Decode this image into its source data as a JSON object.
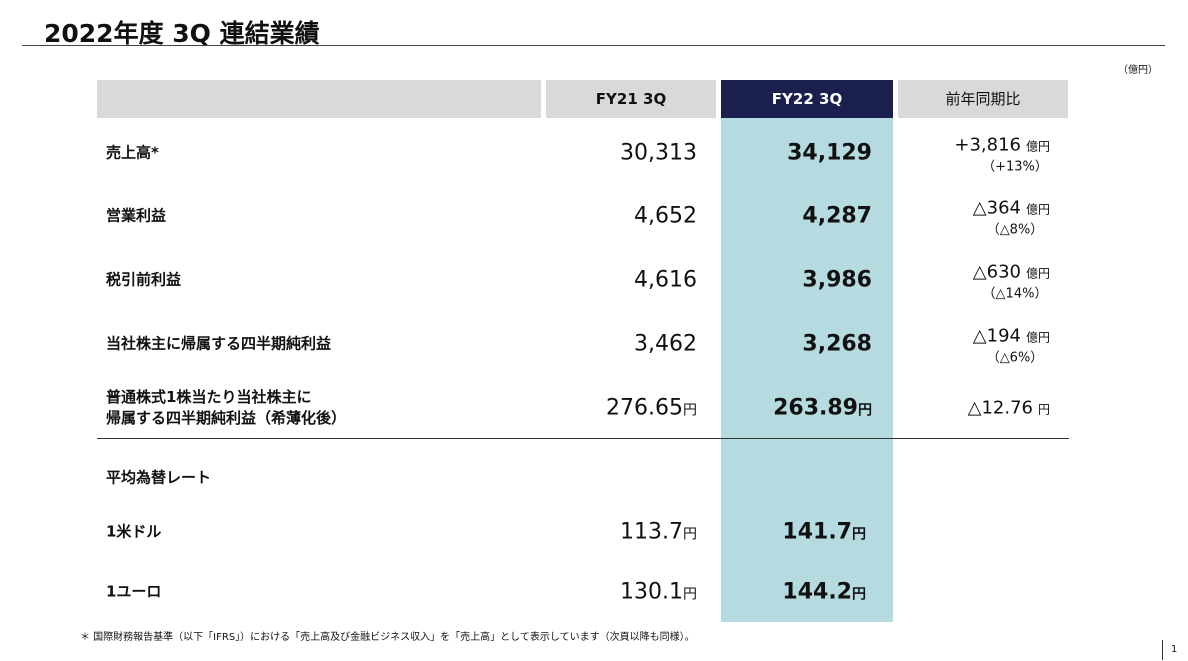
{
  "title": "2022年度 3Q 連結業績",
  "unit_note": "（億円）",
  "table": {
    "header": {
      "fy21": "FY21 3Q",
      "fy22": "FY22 3Q",
      "change": "前年同期比"
    },
    "rows": [
      {
        "label": [
          "売上高*"
        ],
        "fy21": {
          "value": "30,313"
        },
        "fy22": {
          "value": "34,129"
        },
        "change": {
          "value": "+3,816",
          "unit": "億円",
          "pct": "（+13%）"
        }
      },
      {
        "label": [
          "営業利益"
        ],
        "fy21": {
          "value": "4,652"
        },
        "fy22": {
          "value": "4,287"
        },
        "change": {
          "value": "△364",
          "unit": "億円",
          "pct": "（△8%）"
        }
      },
      {
        "label": [
          "税引前利益"
        ],
        "fy21": {
          "value": "4,616"
        },
        "fy22": {
          "value": "3,986"
        },
        "change": {
          "value": "△630",
          "unit": "億円",
          "pct": "（△14%）"
        }
      },
      {
        "label": [
          "当社株主に帰属する四半期純利益"
        ],
        "fy21": {
          "value": "3,462"
        },
        "fy22": {
          "value": "3,268"
        },
        "change": {
          "value": "△194",
          "unit": "億円",
          "pct": "（△6%）"
        }
      },
      {
        "label": [
          "普通株式1株当たり当社株主に",
          "帰属する四半期純利益（希薄化後）"
        ],
        "fy21": {
          "value": "276.65",
          "unit": "円"
        },
        "fy22": {
          "value": "263.89",
          "unit": "円"
        },
        "change": {
          "value": "△12.76",
          "unit": "円"
        }
      }
    ]
  },
  "fx": {
    "title": "平均為替レート",
    "rows": [
      {
        "label": [
          "1米ドル"
        ],
        "fy21": {
          "value": "113.7",
          "unit": "円"
        },
        "fy22": {
          "value": "141.7",
          "unit": "円"
        }
      },
      {
        "label": [
          "1ユーロ"
        ],
        "fy21": {
          "value": "130.1",
          "unit": "円"
        },
        "fy22": {
          "value": "144.2",
          "unit": "円"
        }
      }
    ]
  },
  "footnote": "＊ 国際財務報告基準（以下「IFRS」）における「売上高及び金融ビジネス収入」を「売上高」として表示しています（次頁以降も同様）。",
  "page_number": "1"
}
